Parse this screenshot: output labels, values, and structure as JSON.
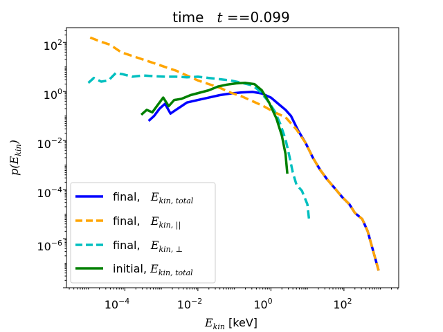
{
  "chart_data": {
    "type": "line",
    "title_prefix": "time",
    "title_var": "t",
    "title_eq": " ==",
    "title_value": "0.099",
    "xlabel_var": "E",
    "xlabel_sub": "kin",
    "xlabel_unit": " [keV]",
    "ylabel_fn": "p(",
    "ylabel_var": "E",
    "ylabel_sub": "kin",
    "ylabel_close": ")",
    "xscale": "log",
    "yscale": "log",
    "xlim_log10": [
      -5.6,
      3.5
    ],
    "ylim_log10": [
      -8.0,
      2.6
    ],
    "xticks": [
      {
        "exp": -4,
        "base": "10",
        "sup": "−4"
      },
      {
        "exp": -2,
        "base": "10",
        "sup": "−2"
      },
      {
        "exp": 0,
        "base": "10",
        "sup": "0"
      },
      {
        "exp": 2,
        "base": "10",
        "sup": "2"
      }
    ],
    "yticks": [
      {
        "exp": 2,
        "base": "10",
        "sup": "2"
      },
      {
        "exp": 0,
        "base": "10",
        "sup": "0"
      },
      {
        "exp": -2,
        "base": "10",
        "sup": "−2"
      },
      {
        "exp": -4,
        "base": "10",
        "sup": "−4"
      },
      {
        "exp": -6,
        "base": "10",
        "sup": "−6"
      }
    ],
    "legend_position": "lower-left",
    "series": [
      {
        "name": "final, E_kin,total",
        "label_prefix": "final,   ",
        "label_var": "E",
        "label_sub": "kin, total",
        "color": "#0000ff",
        "dash": "solid",
        "points": [
          [
            -3.35,
            -1.2
          ],
          [
            -3.2,
            -1.0
          ],
          [
            -3.05,
            -0.7
          ],
          [
            -2.9,
            -0.5
          ],
          [
            -2.75,
            -0.9
          ],
          [
            -2.6,
            -0.75
          ],
          [
            -2.45,
            -0.6
          ],
          [
            -2.3,
            -0.45
          ],
          [
            -2.0,
            -0.35
          ],
          [
            -1.7,
            -0.25
          ],
          [
            -1.4,
            -0.15
          ],
          [
            -1.1,
            -0.08
          ],
          [
            -0.8,
            -0.04
          ],
          [
            -0.5,
            -0.02
          ],
          [
            -0.25,
            -0.08
          ],
          [
            0.0,
            -0.25
          ],
          [
            0.2,
            -0.5
          ],
          [
            0.4,
            -0.75
          ],
          [
            0.55,
            -1.0
          ],
          [
            0.75,
            -1.6
          ],
          [
            0.95,
            -2.1
          ],
          [
            1.15,
            -2.7
          ],
          [
            1.35,
            -3.2
          ],
          [
            1.55,
            -3.6
          ],
          [
            1.75,
            -3.95
          ],
          [
            1.95,
            -4.3
          ],
          [
            2.15,
            -4.6
          ],
          [
            2.3,
            -4.95
          ],
          [
            2.5,
            -5.2
          ],
          [
            2.65,
            -5.7
          ],
          [
            2.8,
            -6.5
          ],
          [
            2.95,
            -7.3
          ]
        ]
      },
      {
        "name": "final, E_kin,||",
        "label_prefix": "final,   ",
        "label_var": "E",
        "label_sub": "kin, ||",
        "color": "#ffa500",
        "dash": "dashed",
        "points": [
          [
            -4.95,
            2.2
          ],
          [
            -4.7,
            2.05
          ],
          [
            -4.4,
            1.9
          ],
          [
            -4.1,
            1.6
          ],
          [
            -3.8,
            1.45
          ],
          [
            -3.5,
            1.3
          ],
          [
            -3.2,
            1.15
          ],
          [
            -2.9,
            1.0
          ],
          [
            -2.6,
            0.85
          ],
          [
            -2.3,
            0.65
          ],
          [
            -2.0,
            0.45
          ],
          [
            -1.7,
            0.3
          ],
          [
            -1.4,
            0.15
          ],
          [
            -1.1,
            -0.05
          ],
          [
            -0.8,
            -0.2
          ],
          [
            -0.5,
            -0.4
          ],
          [
            -0.2,
            -0.6
          ],
          [
            0.1,
            -0.85
          ],
          [
            0.4,
            -1.05
          ],
          [
            0.7,
            -1.55
          ],
          [
            0.95,
            -2.1
          ],
          [
            1.15,
            -2.7
          ],
          [
            1.35,
            -3.2
          ],
          [
            1.55,
            -3.6
          ],
          [
            1.75,
            -3.95
          ],
          [
            1.95,
            -4.3
          ],
          [
            2.15,
            -4.6
          ],
          [
            2.3,
            -4.95
          ],
          [
            2.5,
            -5.2
          ],
          [
            2.65,
            -5.7
          ],
          [
            2.8,
            -6.5
          ],
          [
            2.95,
            -7.3
          ]
        ]
      },
      {
        "name": "final, E_kin,perp",
        "label_prefix": "final,   ",
        "label_var": "E",
        "label_sub": "kin, ⊥",
        "color": "#00bfbf",
        "dash": "dashed",
        "points": [
          [
            -5.0,
            0.35
          ],
          [
            -4.85,
            0.55
          ],
          [
            -4.65,
            0.4
          ],
          [
            -4.45,
            0.45
          ],
          [
            -4.25,
            0.75
          ],
          [
            -4.05,
            0.7
          ],
          [
            -3.8,
            0.6
          ],
          [
            -3.5,
            0.65
          ],
          [
            -3.2,
            0.62
          ],
          [
            -2.9,
            0.6
          ],
          [
            -2.6,
            0.6
          ],
          [
            -2.3,
            0.58
          ],
          [
            -2.0,
            0.6
          ],
          [
            -1.7,
            0.55
          ],
          [
            -1.4,
            0.5
          ],
          [
            -1.1,
            0.45
          ],
          [
            -0.8,
            0.35
          ],
          [
            -0.5,
            0.25
          ],
          [
            -0.3,
            0.0
          ],
          [
            -0.1,
            -0.35
          ],
          [
            0.1,
            -0.8
          ],
          [
            0.25,
            -1.3
          ],
          [
            0.4,
            -1.95
          ],
          [
            0.5,
            -2.6
          ],
          [
            0.6,
            -3.3
          ],
          [
            0.7,
            -3.8
          ],
          [
            0.85,
            -4.05
          ],
          [
            1.0,
            -4.6
          ],
          [
            1.05,
            -5.3
          ]
        ]
      },
      {
        "name": "initial, E_kin,total",
        "label_prefix": "initial, ",
        "label_var": "E",
        "label_sub": "kin, total",
        "color": "#008000",
        "dash": "solid",
        "points": [
          [
            -3.55,
            -0.95
          ],
          [
            -3.4,
            -0.75
          ],
          [
            -3.25,
            -0.85
          ],
          [
            -3.1,
            -0.55
          ],
          [
            -2.95,
            -0.25
          ],
          [
            -2.8,
            -0.6
          ],
          [
            -2.65,
            -0.35
          ],
          [
            -2.45,
            -0.3
          ],
          [
            -2.2,
            -0.15
          ],
          [
            -1.95,
            -0.05
          ],
          [
            -1.7,
            0.05
          ],
          [
            -1.45,
            0.2
          ],
          [
            -1.2,
            0.28
          ],
          [
            -0.95,
            0.33
          ],
          [
            -0.7,
            0.35
          ],
          [
            -0.45,
            0.3
          ],
          [
            -0.25,
            0.05
          ],
          [
            -0.05,
            -0.45
          ],
          [
            0.15,
            -1.1
          ],
          [
            0.3,
            -1.8
          ],
          [
            0.4,
            -2.55
          ],
          [
            0.45,
            -3.35
          ]
        ]
      }
    ]
  }
}
